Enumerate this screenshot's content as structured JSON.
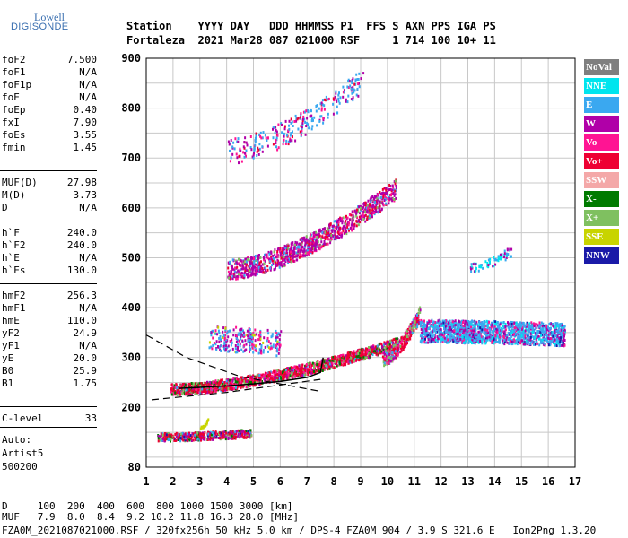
{
  "logo": {
    "line1": "Lowell",
    "line2": "DIGISONDE"
  },
  "header": {
    "row1": "Station    YYYY DAY   DDD HHMMSS P1  FFS S AXN PPS IGA PS",
    "row2": "Fortaleza  2021 Mar28 087 021000 RSF     1 714 100 10+ 11"
  },
  "params_a": [
    {
      "label": "foF2",
      "value": "7.500"
    },
    {
      "label": "foF1",
      "value": "N/A"
    },
    {
      "label": "foF1p",
      "value": "N/A"
    },
    {
      "label": "foE",
      "value": "N/A"
    },
    {
      "label": "foEp",
      "value": "0.40"
    },
    {
      "label": "fxI",
      "value": "7.90"
    },
    {
      "label": "foEs",
      "value": "3.55"
    },
    {
      "label": "fmin",
      "value": "1.45"
    }
  ],
  "params_b": [
    {
      "label": "MUF(D)",
      "value": "27.98"
    },
    {
      "label": "M(D)",
      "value": "3.73"
    },
    {
      "label": "D",
      "value": "N/A"
    }
  ],
  "params_c": [
    {
      "label": "h`F",
      "value": "240.0"
    },
    {
      "label": "h`F2",
      "value": "240.0"
    },
    {
      "label": "h`E",
      "value": "N/A"
    },
    {
      "label": "h`Es",
      "value": "130.0"
    }
  ],
  "params_d": [
    {
      "label": "hmF2",
      "value": "256.3"
    },
    {
      "label": "hmF1",
      "value": "N/A"
    },
    {
      "label": "hmE",
      "value": "110.0"
    },
    {
      "label": "yF2",
      "value": "24.9"
    },
    {
      "label": "yF1",
      "value": "N/A"
    },
    {
      "label": "yE",
      "value": "20.0"
    },
    {
      "label": "B0",
      "value": "25.9"
    },
    {
      "label": "B1",
      "value": "1.75"
    }
  ],
  "params_e": [
    {
      "label": "C-level",
      "value": "33"
    }
  ],
  "auto_lines": [
    "Auto:",
    "Artist5",
    "500200"
  ],
  "legend": [
    {
      "label": "NoVal",
      "color": "#7f7f7f"
    },
    {
      "label": "NNE",
      "color": "#00e5ee"
    },
    {
      "label": "E",
      "color": "#3aa8f0"
    },
    {
      "label": "W",
      "color": "#b000a8"
    },
    {
      "label": "Vo-",
      "color": "#ff1493"
    },
    {
      "label": "Vo+",
      "color": "#ee0033"
    },
    {
      "label": "SSW",
      "color": "#f4a8a8"
    },
    {
      "label": "X-",
      "color": "#007a00"
    },
    {
      "label": "X+",
      "color": "#7fc060"
    },
    {
      "label": "SSE",
      "color": "#c8d400"
    },
    {
      "label": "NNW",
      "color": "#1a1aa8"
    }
  ],
  "footer": {
    "line1": "D     100  200  400  600  800 1000 1500 3000 [km]",
    "line2": "MUF   7.9  8.0  8.4  9.2 10.2 11.8 16.3 28.0 [MHz]",
    "line3": "FZA0M_2021087021000.RSF / 320fx256h 50 kHz 5.0 km / DPS-4 FZA0M 904 / 3.9 S 321.6 E   Ion2Png 1.3.20"
  },
  "chart_data": {
    "type": "scatter",
    "title": "",
    "xlabel": "",
    "ylabel": "",
    "xlim": [
      1,
      17
    ],
    "ylim": [
      80,
      900
    ],
    "xticks": [
      1,
      2,
      3,
      4,
      5,
      6,
      7,
      8,
      9,
      10,
      11,
      12,
      13,
      14,
      15,
      16,
      17
    ],
    "yticks": [
      80,
      200,
      300,
      400,
      500,
      600,
      700,
      800,
      900
    ],
    "grid": true,
    "traces": [
      {
        "name": "O-trace F2",
        "color": "#ee0033",
        "x_range": [
          1.9,
          10.4
        ],
        "y_start": 240,
        "y_end": 330
      },
      {
        "name": "O-trace F2 upper",
        "color": "#ee0033",
        "x_range": [
          10.0,
          11.0
        ],
        "y_start": 300,
        "y_end": 380
      },
      {
        "name": "Es trace",
        "color": "#ee0033",
        "x_range": [
          1.5,
          4.8
        ],
        "y_start": 140,
        "y_end": 155
      },
      {
        "name": "2nd hop F",
        "color": "#b000a8",
        "x_range": [
          4.0,
          10.3
        ],
        "y_start": 480,
        "y_end": 640
      },
      {
        "name": "3rd hop F",
        "color": "#3aa8f0",
        "x_range": [
          4.0,
          9.0
        ],
        "y_start": 710,
        "y_end": 860
      },
      {
        "name": "spread F",
        "color": "#3aa8f0",
        "x_range": [
          11.0,
          16.5
        ],
        "y_start": 340,
        "y_end": 360
      }
    ],
    "profile_curve": {
      "x": [
        2.2,
        3.0,
        4.0,
        5.0,
        6.0,
        7.0,
        7.5,
        7.6
      ],
      "y": [
        238,
        240,
        243,
        247,
        252,
        260,
        270,
        300
      ]
    },
    "extrapolated_curves": [
      {
        "x": [
          1,
          2.5,
          4.5,
          7.5
        ],
        "y": [
          345,
          300,
          262,
          232
        ]
      },
      {
        "x": [
          1.2,
          4,
          7.5
        ],
        "y": [
          215,
          230,
          256
        ]
      }
    ]
  }
}
